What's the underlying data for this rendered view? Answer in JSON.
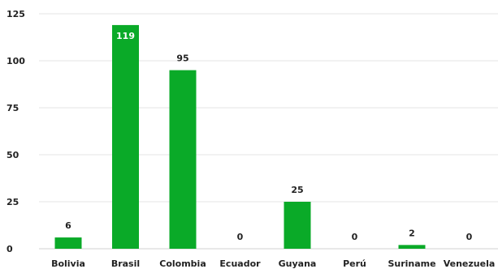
{
  "chart_data": {
    "type": "bar",
    "categories": [
      "Bolivia",
      "Brasil",
      "Colombia",
      "Ecuador",
      "Guyana",
      "Perú",
      "Suriname",
      "Venezuela"
    ],
    "values": [
      6,
      119,
      95,
      0,
      25,
      0,
      2,
      0
    ],
    "data_labels": [
      "6",
      "119",
      "95",
      "0",
      "25",
      "0",
      "2",
      "0"
    ],
    "yticks": [
      0,
      25,
      50,
      75,
      100,
      125
    ],
    "ytick_labels": [
      "0",
      "25",
      "50",
      "75",
      "100",
      "125"
    ],
    "ylim": [
      0,
      125
    ],
    "grid": true,
    "title": "",
    "xlabel": "",
    "ylabel": "",
    "colors": {
      "bar": "#0aaa28",
      "label_outside": "#222222",
      "label_inside": "#ffffff"
    }
  }
}
